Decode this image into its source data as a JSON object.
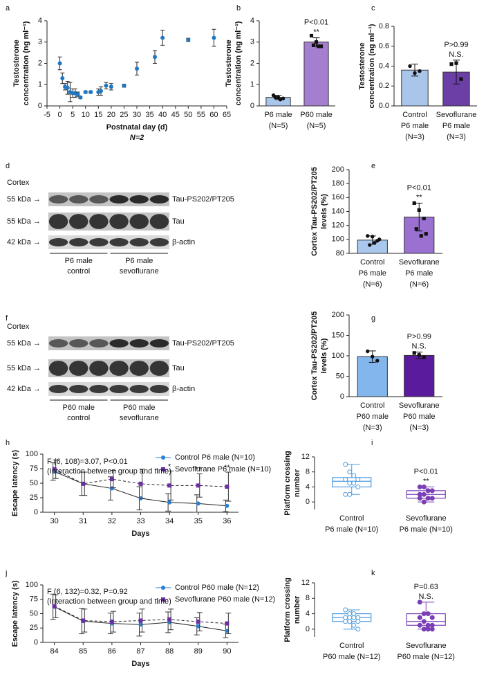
{
  "chart_data": [
    {
      "panel_label": "a",
      "type": "scatter",
      "ylabel": [
        "Testosterone",
        "concentration (ng ml⁻¹)"
      ],
      "xlabel": "Postnatal day (d)",
      "subtitle": "N=2",
      "x": [
        0,
        1,
        2,
        3,
        4,
        5,
        6,
        7,
        8,
        10,
        12,
        15,
        16,
        18,
        20,
        25,
        30,
        37,
        40,
        50,
        60
      ],
      "values": [
        2.0,
        1.3,
        0.9,
        0.85,
        0.65,
        0.6,
        0.6,
        0.55,
        0.4,
        0.65,
        0.65,
        0.65,
        0.7,
        0.95,
        0.9,
        0.95,
        1.75,
        2.3,
        3.2,
        3.1,
        3.2
      ],
      "errors": [
        0.3,
        0.25,
        0.15,
        0.3,
        0.45,
        0.2,
        0.2,
        0.1,
        0.05,
        0.05,
        0.05,
        0.15,
        0.2,
        0.15,
        0.15,
        0.07,
        0.3,
        0.3,
        0.35,
        0.08,
        0.4
      ],
      "color": "#1f77c4",
      "xlim": [
        -5,
        65
      ],
      "xticks": [
        -5,
        0,
        5,
        10,
        15,
        20,
        25,
        30,
        35,
        40,
        45,
        50,
        55,
        60,
        65
      ],
      "ylim": [
        0,
        4
      ],
      "yticks": [
        0,
        1,
        2,
        3,
        4
      ]
    },
    {
      "panel_label": "b",
      "type": "bar",
      "ylabel": [
        "Testosterone",
        "concentration (ng ml⁻¹)"
      ],
      "categories": [
        [
          "P6 male",
          "(N=5)"
        ],
        [
          "P60 male",
          "(N=5)"
        ]
      ],
      "values": [
        0.4,
        3.0
      ],
      "errors": [
        0.1,
        0.2
      ],
      "points": [
        [
          0.5,
          0.4,
          0.35,
          0.4,
          0.3
        ],
        [
          3.3,
          3.0,
          2.8,
          2.85,
          2.8
        ]
      ],
      "colors": [
        "#a9c6ea",
        "#a57fcf"
      ],
      "annotation": [
        "P<0.01",
        "**"
      ],
      "ylim": [
        0,
        4
      ],
      "yticks": [
        0,
        1,
        2,
        3,
        4
      ]
    },
    {
      "panel_label": "c",
      "type": "bar",
      "ylabel": [
        "Testosterone",
        "concentration (ng ml⁻¹)"
      ],
      "categories": [
        [
          "Control",
          "P6 male",
          "(N=3)"
        ],
        [
          "Sevoflurane",
          "P6 male",
          "(N=3)"
        ]
      ],
      "values": [
        0.36,
        0.34
      ],
      "errors": [
        0.06,
        0.12
      ],
      "points": [
        [
          0.4,
          0.33,
          0.35
        ],
        [
          0.42,
          0.43,
          0.27
        ]
      ],
      "colors": [
        "#a9c6ea",
        "#6b3fa5"
      ],
      "annotation": [
        "P>0.99",
        "N.S."
      ],
      "ylim": [
        0,
        0.8
      ],
      "yticks": [
        {
          "value": 0,
          "label": "0.0"
        },
        0.2,
        0.4,
        0.6,
        0.8
      ]
    },
    {
      "panel_label": "e",
      "type": "bar",
      "ylabel": [
        "Cortex Tau-PS202/PT205",
        "levels (%)"
      ],
      "categories": [
        [
          "Control",
          "P6 male",
          "(N=6)"
        ],
        [
          "Sevoflurane",
          "P6 male",
          "(N=6)"
        ]
      ],
      "values": [
        99,
        132
      ],
      "errors": [
        6,
        20
      ],
      "points": [
        [
          105,
          104,
          98,
          92,
          95,
          100
        ],
        [
          152,
          142,
          130,
          115,
          105,
          108
        ]
      ],
      "colors": [
        "#aac8ee",
        "#9a70d0"
      ],
      "annotation": [
        "P<0.01",
        "**"
      ],
      "ylim": [
        80,
        200
      ],
      "yticks": [
        80,
        100,
        120,
        140,
        160,
        180,
        200
      ]
    },
    {
      "panel_label": "g",
      "type": "bar",
      "ylabel": [
        "Cortex Tau-PS202/PT205",
        "levels (%)"
      ],
      "categories": [
        [
          "Control",
          "P60 male",
          "(N=3)"
        ],
        [
          "Sevoflurane",
          "P60 male",
          "(N=3)"
        ]
      ],
      "values": [
        98,
        101
      ],
      "errors": [
        14,
        8
      ],
      "points": [
        [
          111,
          98,
          88
        ],
        [
          107,
          102,
          96
        ]
      ],
      "colors": [
        "#82b6ec",
        "#5a1c9c"
      ],
      "annotation": [
        "P>0.99",
        "N.S."
      ],
      "ylim": [
        0,
        200
      ],
      "yticks": [
        0,
        50,
        100,
        150,
        200
      ]
    },
    {
      "panel_label": "h",
      "type": "line",
      "ylabel": [
        "Escape latency (s)"
      ],
      "xlabel": "Days",
      "note": [
        "F (6, 108)=3.07, P<0.01",
        "(Interaction between group and time)"
      ],
      "x": [
        30,
        31,
        32,
        33,
        34,
        35,
        36
      ],
      "xlim": [
        29.6,
        36.4
      ],
      "xticks": [
        30,
        31,
        32,
        33,
        34,
        35,
        36
      ],
      "series": [
        {
          "name": "Control P6 male (N=10)",
          "color": "#2a7fd0",
          "marker": "circle",
          "dashed": false,
          "values": [
            70,
            49,
            41,
            24,
            17,
            15,
            11
          ],
          "errors": [
            15,
            20,
            20,
            20,
            15,
            15,
            10
          ]
        },
        {
          "name": "Sevoflurane P6 male (N=10)",
          "color": "#6a2fa0",
          "marker": "square",
          "dashed": true,
          "values": [
            74,
            49,
            57,
            49,
            46,
            46,
            44
          ],
          "errors": [
            16,
            20,
            15,
            25,
            25,
            20,
            25
          ]
        }
      ],
      "annotations": [
        {
          "x": 34,
          "text": "*"
        },
        {
          "x": 35,
          "text": "**"
        },
        {
          "x": 36,
          "text": "**"
        }
      ],
      "ylim": [
        0,
        100
      ],
      "yticks": [
        0,
        25,
        50,
        75,
        100
      ]
    },
    {
      "panel_label": "i",
      "type": "box",
      "ylabel": [
        "Platform crossing",
        "number"
      ],
      "categories": [
        [
          "Control",
          "P6 male (N=10)"
        ],
        [
          "Sevoflurane",
          "P6 male (N=10)"
        ]
      ],
      "boxes": [
        {
          "min": 2,
          "q1": 4,
          "median": 5.5,
          "q3": 6.5,
          "max": 10,
          "points": [
            10,
            8,
            7,
            6,
            6,
            5,
            5,
            4,
            2,
            2
          ]
        },
        {
          "min": 0,
          "q1": 1,
          "median": 2,
          "q3": 3,
          "max": 4,
          "points": [
            4,
            4,
            3,
            3,
            2,
            2,
            1,
            1,
            1,
            0
          ]
        }
      ],
      "colors": [
        "#4a9be0",
        "#7a3fb5"
      ],
      "annotation": [
        "P<0.01",
        "**"
      ],
      "ylim": [
        -2,
        12
      ],
      "yticks": [
        0,
        4,
        8,
        12
      ]
    },
    {
      "panel_label": "j",
      "type": "line",
      "ylabel": [
        "Escape latency (s)"
      ],
      "xlabel": "Days",
      "note": [
        "F (6, 132)=0.32, P=0.92",
        "(Interaction between group and time)"
      ],
      "x": [
        84,
        85,
        86,
        87,
        88,
        89,
        90
      ],
      "xlim": [
        83.6,
        90.4
      ],
      "xticks": [
        84,
        85,
        86,
        87,
        88,
        89,
        90
      ],
      "series": [
        {
          "name": "Control P60 male (N=12)",
          "color": "#2a7fd0",
          "marker": "circle",
          "dashed": false,
          "values": [
            62,
            37,
            33,
            31,
            35,
            28,
            20
          ],
          "errors": [
            22,
            22,
            18,
            20,
            18,
            15,
            12
          ]
        },
        {
          "name": "Sevoflurane P60 male (N=12)",
          "color": "#6a2fa0",
          "marker": "square",
          "dashed": true,
          "values": [
            63,
            38,
            36,
            38,
            40,
            36,
            33
          ],
          "errors": [
            20,
            20,
            18,
            20,
            18,
            16,
            18
          ]
        }
      ],
      "ylim": [
        0,
        100
      ],
      "yticks": [
        0,
        25,
        50,
        75,
        100
      ]
    },
    {
      "panel_label": "k",
      "type": "box",
      "ylabel": [
        "Platform crossing",
        "number"
      ],
      "categories": [
        [
          "Control",
          "P60 male (N=12)"
        ],
        [
          "Sevoflurane",
          "P60 male (N=12)"
        ]
      ],
      "boxes": [
        {
          "min": 0,
          "q1": 2,
          "median": 3,
          "q3": 4,
          "max": 5,
          "points": [
            5,
            4,
            4,
            3,
            3,
            3,
            3,
            2,
            2,
            2,
            1,
            0
          ]
        },
        {
          "min": 0,
          "q1": 1,
          "median": 2,
          "q3": 4,
          "max": 7,
          "points": [
            7,
            4,
            4,
            3,
            3,
            2,
            1,
            1,
            1,
            0,
            0,
            0
          ]
        }
      ],
      "colors": [
        "#4a9be0",
        "#7a3fb5"
      ],
      "annotation": [
        "P=0.63",
        "N.S."
      ],
      "ylim": [
        -2,
        12
      ],
      "yticks": [
        0,
        4,
        8,
        12
      ]
    }
  ],
  "blots": [
    {
      "panel_label": "d",
      "region": "Cortex",
      "rows": [
        {
          "marker": "55 kDa →",
          "protein": "Tau-PS202/PT205"
        },
        {
          "marker": "55 kDa →",
          "protein": "Tau"
        },
        {
          "marker": "42 kDa →",
          "protein": "β-actin"
        }
      ],
      "groups": [
        [
          "P6 male",
          "control"
        ],
        [
          "P6 male",
          "sevoflurane"
        ]
      ]
    },
    {
      "panel_label": "f",
      "region": "Cortex",
      "rows": [
        {
          "marker": "55 kDa →",
          "protein": "Tau-PS202/PT205"
        },
        {
          "marker": "55 kDa →",
          "protein": "Tau"
        },
        {
          "marker": "42 kDa →",
          "protein": "β-actin"
        }
      ],
      "groups": [
        [
          "P60 male",
          "control"
        ],
        [
          "P60 male",
          "sevoflurane"
        ]
      ]
    }
  ]
}
